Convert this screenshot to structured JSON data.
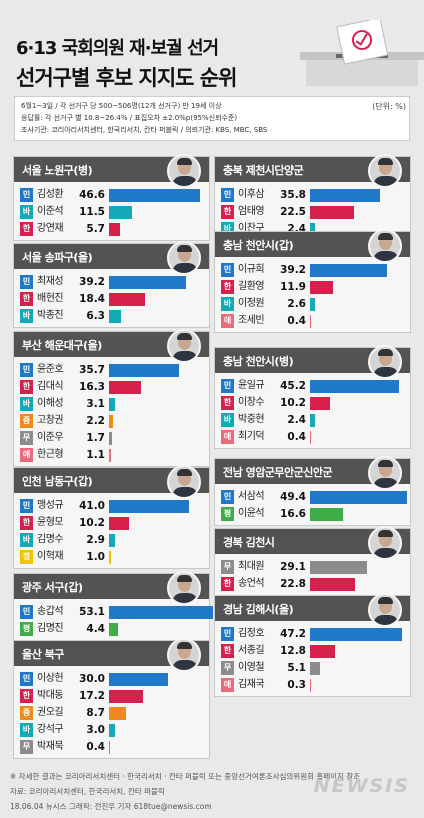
{
  "title": "6·13 국회의원 재·보궐 선거",
  "subtitle": "선거구별 후보 지지도 순위",
  "unit": "(단위: %)",
  "info": [
    "6월1~3일 / 각 선거구 당 500~506명(12개 선거구) 만 19세 이상",
    "응답률: 각 선거구 별 10.8~26.4% / 표집오차 ±2.0%p(95%신뢰수준)",
    "조사기관: 코리아리서치센터, 한국리서치, 칸타 퍼블릭 / 의뢰기관: KBS, MBC, SBS"
  ],
  "footer": {
    "note": "※ 자세한 결과는 코리아리서치센터 · 한국리서치 · 칸타 퍼블릭 또는 중앙선거여론조사심의위원회 홈페이지 참조",
    "source": "자료: 코리아리서치센터, 한국리서치, 칸타 퍼블릭",
    "credit": "18.06.04 뉴시스 그래픽: 전진우 기자 618tue@newsis.com",
    "watermark": "NEWSIS"
  },
  "party_colors": {
    "민": "#1f78c8",
    "한": "#d8204c",
    "바": "#13a9b7",
    "중": "#ef8a1e",
    "무": "#8c8c8c",
    "애": "#ea6b7c",
    "평": "#3fae49",
    "정": "#f2c400"
  },
  "chart_data": {
    "type": "bar",
    "x_max": 53.1,
    "districts": [
      {
        "name": "서울 노원구(병)",
        "candidates": [
          {
            "party": "민",
            "name": "김성환",
            "value": 46.6
          },
          {
            "party": "바",
            "name": "이준석",
            "value": 11.5
          },
          {
            "party": "한",
            "name": "강연재",
            "value": 5.7
          }
        ]
      },
      {
        "name": "서울 송파구(을)",
        "candidates": [
          {
            "party": "민",
            "name": "최재성",
            "value": 39.2
          },
          {
            "party": "한",
            "name": "배현진",
            "value": 18.4
          },
          {
            "party": "바",
            "name": "박종진",
            "value": 6.3
          }
        ]
      },
      {
        "name": "부산 해운대구(을)",
        "candidates": [
          {
            "party": "민",
            "name": "윤준호",
            "value": 35.7
          },
          {
            "party": "한",
            "name": "김대식",
            "value": 16.3
          },
          {
            "party": "바",
            "name": "이해성",
            "value": 3.1
          },
          {
            "party": "중",
            "name": "고창권",
            "value": 2.2
          },
          {
            "party": "무",
            "name": "이준우",
            "value": 1.7
          },
          {
            "party": "애",
            "name": "한근형",
            "value": 1.1
          }
        ]
      },
      {
        "name": "인천 남동구(갑)",
        "candidates": [
          {
            "party": "민",
            "name": "맹성규",
            "value": 41.0
          },
          {
            "party": "한",
            "name": "윤형모",
            "value": 10.2
          },
          {
            "party": "바",
            "name": "김명수",
            "value": 2.9
          },
          {
            "party": "정",
            "name": "이혁재",
            "value": 1.0
          }
        ]
      },
      {
        "name": "광주 서구(갑)",
        "candidates": [
          {
            "party": "민",
            "name": "송갑석",
            "value": 53.1
          },
          {
            "party": "평",
            "name": "김명진",
            "value": 4.4
          }
        ]
      },
      {
        "name": "울산 북구",
        "candidates": [
          {
            "party": "민",
            "name": "이상헌",
            "value": 30.0
          },
          {
            "party": "한",
            "name": "박대동",
            "value": 17.2
          },
          {
            "party": "중",
            "name": "권오길",
            "value": 8.7
          },
          {
            "party": "바",
            "name": "강석구",
            "value": 3.0
          },
          {
            "party": "무",
            "name": "박재묵",
            "value": 0.4
          }
        ]
      },
      {
        "name": "충북 제천시단양군",
        "candidates": [
          {
            "party": "민",
            "name": "이후삼",
            "value": 35.8
          },
          {
            "party": "한",
            "name": "엄태영",
            "value": 22.5
          },
          {
            "party": "바",
            "name": "이찬구",
            "value": 2.4
          }
        ]
      },
      {
        "name": "충남 천안시(갑)",
        "candidates": [
          {
            "party": "민",
            "name": "이규희",
            "value": 39.2
          },
          {
            "party": "한",
            "name": "길환영",
            "value": 11.9
          },
          {
            "party": "바",
            "name": "이정원",
            "value": 2.6
          },
          {
            "party": "애",
            "name": "조세빈",
            "value": 0.4
          }
        ]
      },
      {
        "name": "충남 천안시(병)",
        "candidates": [
          {
            "party": "민",
            "name": "윤일규",
            "value": 45.2
          },
          {
            "party": "한",
            "name": "이창수",
            "value": 10.2
          },
          {
            "party": "바",
            "name": "박중현",
            "value": 2.4
          },
          {
            "party": "애",
            "name": "최기덕",
            "value": 0.4
          }
        ]
      },
      {
        "name": "전남 영암군무안군신안군",
        "candidates": [
          {
            "party": "민",
            "name": "서삼석",
            "value": 49.4
          },
          {
            "party": "평",
            "name": "이윤석",
            "value": 16.6
          }
        ]
      },
      {
        "name": "경북 김천시",
        "candidates": [
          {
            "party": "무",
            "name": "최대원",
            "value": 29.1
          },
          {
            "party": "한",
            "name": "송언석",
            "value": 22.8
          }
        ]
      },
      {
        "name": "경남 김해시(을)",
        "candidates": [
          {
            "party": "민",
            "name": "김정호",
            "value": 47.2
          },
          {
            "party": "한",
            "name": "서종길",
            "value": 12.8
          },
          {
            "party": "무",
            "name": "이영철",
            "value": 5.1
          },
          {
            "party": "애",
            "name": "김재국",
            "value": 0.3
          }
        ]
      }
    ]
  }
}
